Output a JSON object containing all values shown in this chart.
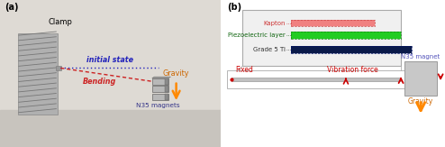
{
  "fig_width": 4.94,
  "fig_height": 1.63,
  "dpi": 100,
  "panel_a": {
    "label": "(a)",
    "bg_color": "#e8e6e0",
    "clamp_fill": "#b0b0b0",
    "clamp_hatch": "#777777",
    "initial_state_color": "#2222bb",
    "bending_color": "#cc2222",
    "gravity_arrow_color": "#ff8800",
    "gravity_label": "Gravity",
    "bending_label": "Bending",
    "initial_label": "initial state",
    "clamp_label": "Clamp",
    "magnets_label": "N35 magnets",
    "magnet_fill": "#b8b8b8",
    "magnet_shade": "#8a8a8a",
    "magnet_edge": "#666666"
  },
  "panel_b": {
    "label": "(b)",
    "bg_color": "#ffffff",
    "beam_color": "#c0c0c0",
    "beam_edge": "#999999",
    "magnet_fill": "#c8c8c8",
    "magnet_edge": "#999999",
    "fixed_label": "Fixed",
    "vibration_label": "Vibration force",
    "magnet_label": "N35 magnet",
    "gravity_label": "Gravity",
    "gravity_arrow_color": "#ff8800",
    "red_arrow_color": "#cc0000",
    "kapton_color": "#f08080",
    "piezo_color": "#22cc22",
    "grade5ti_color": "#0a1a4a",
    "kapton_label": "Kapton",
    "piezo_label": "Piezoelectric layer",
    "grade5ti_label": "Grade 5 Ti",
    "inset_bg": "#f0f0f0",
    "inset_edge": "#aaaaaa",
    "connect_line_color": "#bbbbbb",
    "beam_box_bg": "#ffffff",
    "beam_box_edge": "#aaaaaa"
  }
}
